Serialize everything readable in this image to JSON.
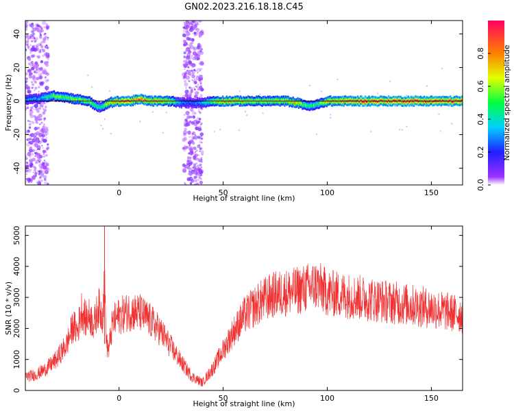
{
  "title": "GN02.2023.216.18.18.C45",
  "chart_data": [
    {
      "type": "heatmap",
      "xlabel": "Height of straight line (km)",
      "ylabel": "Frequency (Hz)",
      "xlim": [
        -45,
        165
      ],
      "ylim": [
        -50,
        48
      ],
      "xticks": [
        0,
        50,
        100,
        150
      ],
      "yticks": [
        -40,
        -20,
        0,
        20,
        40
      ],
      "colorbar": {
        "label": "Normalized spectral amplitude",
        "range": [
          0,
          1
        ],
        "ticks": [
          0.0,
          0.2,
          0.4,
          0.6,
          0.8
        ]
      },
      "main_line_frequency_hz": 0,
      "broadband_bands_km": [
        [
          -45,
          -34
        ],
        [
          31,
          40
        ]
      ],
      "ridge_profile": {
        "x": [
          -45,
          -38,
          -33,
          -30,
          -25,
          -20,
          -15,
          -11,
          -9,
          -5,
          0,
          5,
          10,
          15,
          20,
          25,
          28,
          33,
          40,
          45,
          50,
          60,
          70,
          80,
          85,
          88,
          92,
          95,
          100,
          110,
          120,
          130,
          140,
          150,
          160,
          165
        ],
        "freq": [
          1,
          1.5,
          3,
          3,
          2,
          1,
          0,
          -3,
          -4,
          -1,
          0,
          0,
          1,
          0,
          0,
          0,
          -1,
          -1,
          -1,
          0,
          0,
          0,
          0,
          0,
          -1,
          -2,
          -3,
          -2,
          0,
          0,
          0,
          0,
          0,
          0,
          0,
          0
        ],
        "amplitude": [
          0.3,
          0.35,
          0.55,
          0.6,
          0.55,
          0.6,
          0.65,
          0.5,
          0.5,
          0.7,
          0.85,
          0.9,
          0.85,
          0.85,
          0.8,
          0.7,
          0.4,
          0.25,
          0.35,
          0.6,
          0.8,
          0.75,
          0.7,
          0.7,
          0.75,
          0.6,
          0.5,
          0.55,
          0.8,
          0.9,
          0.95,
          0.95,
          0.95,
          0.95,
          0.95,
          0.9
        ]
      }
    },
    {
      "type": "line",
      "xlabel": "Height of straight line (km)",
      "ylabel": "SNR (10 * v/v)",
      "xlim": [
        -45,
        165
      ],
      "ylim": [
        0,
        5300
      ],
      "xticks": [
        0,
        50,
        100,
        150
      ],
      "yticks": [
        0,
        1000,
        2000,
        3000,
        4000,
        5000
      ],
      "color": "#f03030",
      "series": [
        {
          "x": [
            -45,
            -40,
            -35,
            -30,
            -25,
            -22,
            -20,
            -18,
            -16,
            -14,
            -12,
            -10,
            -8,
            -7,
            -6,
            -5,
            -3,
            0,
            5,
            10,
            15,
            20,
            25,
            30,
            35,
            40,
            45,
            50,
            55,
            60,
            65,
            70,
            75,
            80,
            85,
            90,
            95,
            100,
            110,
            120,
            130,
            140,
            150,
            160,
            165
          ],
          "values": [
            450,
            500,
            700,
            1000,
            1500,
            2100,
            1900,
            2600,
            2300,
            2400,
            2100,
            2700,
            2400,
            3500,
            1500,
            1300,
            2200,
            2400,
            2550,
            2500,
            2250,
            1900,
            1400,
            900,
            450,
            250,
            700,
            1300,
            1900,
            2400,
            2700,
            2950,
            3100,
            3150,
            3200,
            3300,
            3400,
            3150,
            3050,
            2950,
            2850,
            2750,
            2650,
            2500,
            2450
          ]
        }
      ]
    }
  ]
}
